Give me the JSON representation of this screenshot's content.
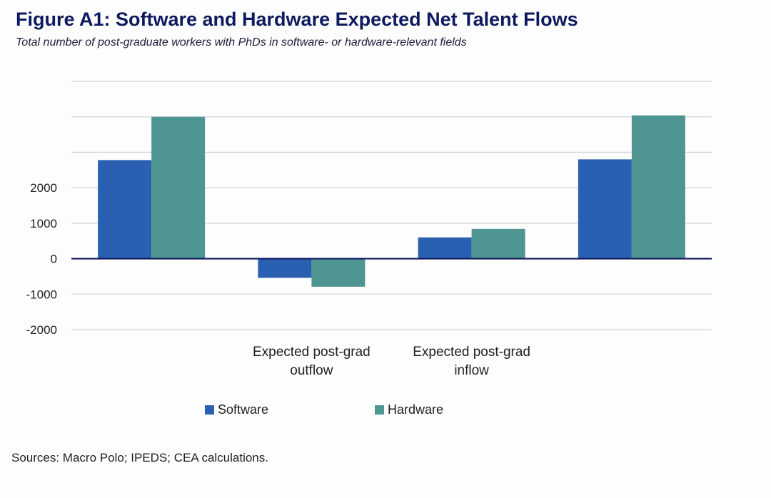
{
  "title": "Figure A1: Software and Hardware Expected Net Talent Flows",
  "subtitle": "Total number of post-graduate workers with PhDs in software- or hardware-relevant fields",
  "source": "Sources: Macro Polo; IPEDS; CEA calculations.",
  "colors": {
    "software": "#2a5fb1",
    "hardware": "#4f9592",
    "grid": "#d5d5dc",
    "axis": "#0d1a5e"
  },
  "chart_data": {
    "type": "bar",
    "categories": [
      "",
      "Expected post-grad outflow",
      "Expected post-grad inflow",
      ""
    ],
    "series": [
      {
        "name": "Software",
        "values": [
          2780,
          -540,
          600,
          2800
        ]
      },
      {
        "name": "Hardware",
        "values": [
          4000,
          -790,
          840,
          4040
        ]
      }
    ],
    "ylim": [
      -2000,
      5000
    ],
    "yticks": [
      "-2000",
      "-1000",
      "0",
      "1000",
      "2000",
      "",
      "",
      ""
    ],
    "ytick_values": [
      -2000,
      -1000,
      0,
      1000,
      2000,
      3000,
      4000,
      5000
    ],
    "grid": true,
    "legend_position": "bottom"
  }
}
